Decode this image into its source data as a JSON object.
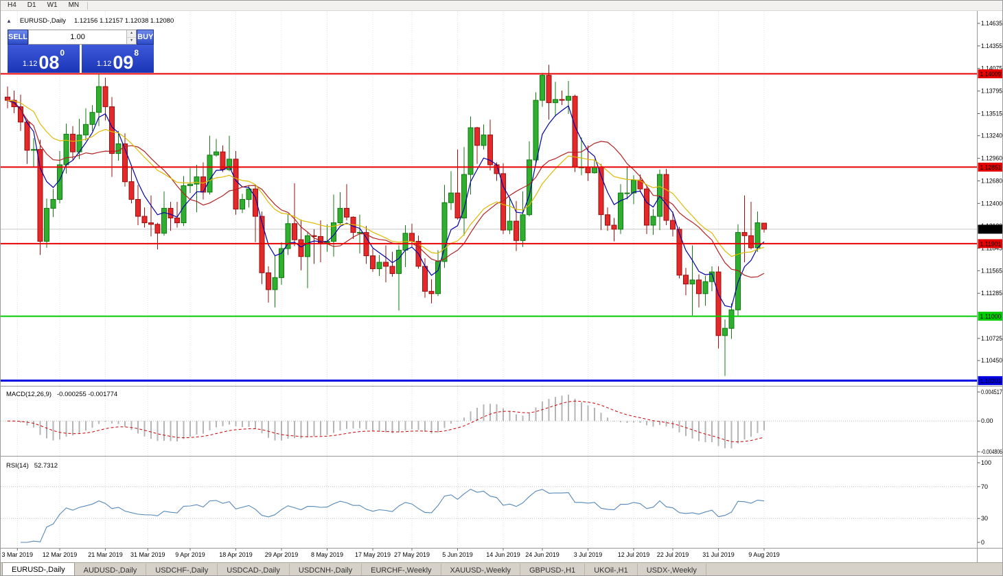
{
  "toolbar": {
    "timeframes": [
      "H4",
      "D1",
      "W1",
      "MN"
    ]
  },
  "chart": {
    "title": "EURUSD-,Daily",
    "ohlc": "1.12156 1.12157 1.12038 1.12080"
  },
  "one_click": {
    "sell_label": "SELL",
    "buy_label": "BUY",
    "volume": "1.00",
    "sell_price": {
      "base": "1.12",
      "big": "08",
      "sup": "0"
    },
    "buy_price": {
      "base": "1.12",
      "big": "09",
      "sup": "8"
    }
  },
  "macd": {
    "label": "MACD(12,26,9)",
    "values": "-0.000255 -0.001774",
    "axis_ticks": [
      {
        "v": 0.004517,
        "label": "0.004517"
      },
      {
        "v": 0,
        "label": "0.00"
      },
      {
        "v": -0.004806,
        "label": "-0.004806"
      }
    ]
  },
  "rsi": {
    "label": "RSI(14)",
    "value": "52.7312",
    "axis_ticks": [
      {
        "v": 100,
        "label": "100"
      },
      {
        "v": 70,
        "label": "70"
      },
      {
        "v": 30,
        "label": "30"
      },
      {
        "v": 0,
        "label": "0"
      }
    ],
    "levels": [
      70,
      30
    ]
  },
  "tabs": {
    "active_index": 0,
    "items": [
      "EURUSD-,Daily",
      "AUDUSD-,Daily",
      "USDCHF-,Daily",
      "USDCAD-,Daily",
      "USDCNH-,Daily",
      "EURCHF-,Weekly",
      "XAUUSD-,Weekly",
      "GBPUSD-,H1",
      "UKOil-,H1",
      "USDX-,Weekly"
    ]
  },
  "chart_data": {
    "type": "candlestick",
    "symbol": "EURUSD-",
    "timeframe": "Daily",
    "current": {
      "price": 1.1208,
      "label": "1.12080"
    },
    "y_axis": {
      "ticks": [
        "1.14635",
        "1.14355",
        "1.14075",
        "1.13795",
        "1.13515",
        "1.13240",
        "1.12960",
        "1.12680",
        "1.12400",
        "1.12120",
        "1.11845",
        "1.11565",
        "1.11285",
        "1.10725",
        "1.10450"
      ]
    },
    "x_ticks": [
      {
        "label": "3 Mar 2019",
        "i": 1.5
      },
      {
        "label": "12 Mar 2019",
        "i": 8
      },
      {
        "label": "21 Mar 2019",
        "i": 15
      },
      {
        "label": "31 Mar 2019",
        "i": 21.5
      },
      {
        "label": "9 Apr 2019",
        "i": 28
      },
      {
        "label": "18 Apr 2019",
        "i": 35
      },
      {
        "label": "29 Apr 2019",
        "i": 42
      },
      {
        "label": "8 May 2019",
        "i": 49
      },
      {
        "label": "17 May 2019",
        "i": 56
      },
      {
        "label": "27 May 2019",
        "i": 62
      },
      {
        "label": "5 Jun 2019",
        "i": 69
      },
      {
        "label": "14 Jun 2019",
        "i": 76
      },
      {
        "label": "24 Jun 2019",
        "i": 82
      },
      {
        "label": "3 Jul 2019",
        "i": 89
      },
      {
        "label": "12 Jul 2019",
        "i": 96
      },
      {
        "label": "22 Jul 2019",
        "i": 102
      },
      {
        "label": "31 Jul 2019",
        "i": 109
      },
      {
        "label": "9 Aug 2019",
        "i": 116
      }
    ],
    "levels": [
      {
        "price": 1.14009,
        "label": "1.14009",
        "color": "#e60000",
        "width": 2
      },
      {
        "price": 1.12851,
        "label": "1.12851",
        "color": "#e60000",
        "width": 2
      },
      {
        "price": 1.11901,
        "label": "1.11901",
        "color": "#e60000",
        "width": 2
      },
      {
        "price": 1.11,
        "label": "1.11000",
        "color": "#00cc00",
        "width": 2
      },
      {
        "price": 1.10201,
        "label": "1.10201",
        "color": "#0000e0",
        "width": 3
      }
    ],
    "moving_averages": [
      {
        "period": 5,
        "method": "ema",
        "color": "#0000a8"
      },
      {
        "period": 13,
        "method": "sma",
        "color": "#b22222"
      },
      {
        "period": 20,
        "method": "ema",
        "color": "#dfba00"
      }
    ],
    "colors": {
      "bull": "#2fae2f",
      "bull_border": "#117a11",
      "bear": "#e32929",
      "bear_border": "#9a0f0f",
      "macd_histogram": "#b5b5b5",
      "macd_signal": "#cc0000",
      "rsi_line": "#5588bb",
      "grid": "#e0e0e0"
    },
    "indicators": {
      "macd_params": [
        12,
        26,
        9
      ],
      "rsi_period": 14
    },
    "candles": [
      [
        1.1372,
        1.1385,
        1.1358,
        1.1368
      ],
      [
        1.1368,
        1.138,
        1.1352,
        1.136
      ],
      [
        1.136,
        1.1375,
        1.133,
        1.1341
      ],
      [
        1.1341,
        1.1345,
        1.1289,
        1.1306
      ],
      [
        1.1306,
        1.1321,
        1.1285,
        1.1307
      ],
      [
        1.1307,
        1.1319,
        1.1176,
        1.1193
      ],
      [
        1.1193,
        1.1246,
        1.1185,
        1.1234
      ],
      [
        1.1234,
        1.1258,
        1.1223,
        1.1245
      ],
      [
        1.1245,
        1.1305,
        1.124,
        1.1288
      ],
      [
        1.1288,
        1.1339,
        1.1277,
        1.1326
      ],
      [
        1.1326,
        1.1336,
        1.1294,
        1.1304
      ],
      [
        1.1304,
        1.1345,
        1.1295,
        1.1325
      ],
      [
        1.1325,
        1.1358,
        1.1318,
        1.1338
      ],
      [
        1.1338,
        1.1362,
        1.133,
        1.1353
      ],
      [
        1.1353,
        1.14,
        1.1336,
        1.1385
      ],
      [
        1.1385,
        1.1396,
        1.1343,
        1.136
      ],
      [
        1.136,
        1.1372,
        1.1273,
        1.1302
      ],
      [
        1.1302,
        1.133,
        1.1293,
        1.1314
      ],
      [
        1.1314,
        1.1327,
        1.1261,
        1.1267
      ],
      [
        1.1267,
        1.1286,
        1.124,
        1.1245
      ],
      [
        1.1245,
        1.1263,
        1.1213,
        1.1224
      ],
      [
        1.1224,
        1.1235,
        1.121,
        1.1216
      ],
      [
        1.1216,
        1.125,
        1.1199,
        1.1214
      ],
      [
        1.1214,
        1.1216,
        1.1183,
        1.1203
      ],
      [
        1.1203,
        1.1255,
        1.12,
        1.1234
      ],
      [
        1.1234,
        1.1242,
        1.1206,
        1.1222
      ],
      [
        1.1222,
        1.1242,
        1.121,
        1.1216
      ],
      [
        1.1216,
        1.1274,
        1.1212,
        1.1262
      ],
      [
        1.1262,
        1.1284,
        1.1253,
        1.1264
      ],
      [
        1.1264,
        1.1288,
        1.1229,
        1.1273
      ],
      [
        1.1273,
        1.1291,
        1.1245,
        1.1254
      ],
      [
        1.1254,
        1.1324,
        1.1251,
        1.13
      ],
      [
        1.13,
        1.132,
        1.1298,
        1.1304
      ],
      [
        1.1304,
        1.1312,
        1.1279,
        1.1282
      ],
      [
        1.1282,
        1.1324,
        1.128,
        1.1295
      ],
      [
        1.1295,
        1.1305,
        1.1226,
        1.1233
      ],
      [
        1.1233,
        1.1252,
        1.1228,
        1.1245
      ],
      [
        1.1245,
        1.1262,
        1.1235,
        1.1258
      ],
      [
        1.1258,
        1.1263,
        1.1192,
        1.1224
      ],
      [
        1.1224,
        1.123,
        1.114,
        1.1154
      ],
      [
        1.1154,
        1.1162,
        1.1117,
        1.1133
      ],
      [
        1.1133,
        1.1175,
        1.1111,
        1.1148
      ],
      [
        1.1148,
        1.1192,
        1.1139,
        1.1184
      ],
      [
        1.1184,
        1.1227,
        1.1176,
        1.1215
      ],
      [
        1.1215,
        1.1265,
        1.1187,
        1.1195
      ],
      [
        1.1195,
        1.122,
        1.1157,
        1.1174
      ],
      [
        1.1174,
        1.1205,
        1.1135,
        1.12
      ],
      [
        1.12,
        1.1208,
        1.1165,
        1.1199
      ],
      [
        1.1199,
        1.1219,
        1.1167,
        1.1191
      ],
      [
        1.1191,
        1.1214,
        1.118,
        1.1193
      ],
      [
        1.1193,
        1.1251,
        1.1174,
        1.1216
      ],
      [
        1.1216,
        1.1254,
        1.1214,
        1.1234
      ],
      [
        1.1234,
        1.1264,
        1.1219,
        1.1223
      ],
      [
        1.1223,
        1.1224,
        1.1196,
        1.1204
      ],
      [
        1.1204,
        1.1226,
        1.1178,
        1.1204
      ],
      [
        1.1204,
        1.1212,
        1.1165,
        1.1175
      ],
      [
        1.1175,
        1.1184,
        1.1155,
        1.1159
      ],
      [
        1.1159,
        1.1176,
        1.115,
        1.1167
      ],
      [
        1.1167,
        1.1188,
        1.1142,
        1.1162
      ],
      [
        1.1162,
        1.118,
        1.1149,
        1.1153
      ],
      [
        1.1153,
        1.1188,
        1.1107,
        1.1182
      ],
      [
        1.1182,
        1.1213,
        1.1161,
        1.1203
      ],
      [
        1.1203,
        1.1215,
        1.1186,
        1.1193
      ],
      [
        1.1193,
        1.12,
        1.1159,
        1.1162
      ],
      [
        1.1162,
        1.1172,
        1.1123,
        1.1131
      ],
      [
        1.1131,
        1.1146,
        1.1116,
        1.1128
      ],
      [
        1.1128,
        1.1182,
        1.1125,
        1.1168
      ],
      [
        1.1168,
        1.1263,
        1.116,
        1.1241
      ],
      [
        1.1241,
        1.128,
        1.1232,
        1.1253
      ],
      [
        1.1253,
        1.1307,
        1.122,
        1.1222
      ],
      [
        1.1222,
        1.131,
        1.12,
        1.1276
      ],
      [
        1.1276,
        1.1348,
        1.1251,
        1.1334
      ],
      [
        1.1334,
        1.1335,
        1.1289,
        1.1312
      ],
      [
        1.1312,
        1.1338,
        1.1307,
        1.1325
      ],
      [
        1.1325,
        1.1344,
        1.1281,
        1.1288
      ],
      [
        1.1288,
        1.1291,
        1.1268,
        1.1277
      ],
      [
        1.1277,
        1.129,
        1.1202,
        1.1207
      ],
      [
        1.1207,
        1.1248,
        1.1202,
        1.1218
      ],
      [
        1.1218,
        1.1243,
        1.1181,
        1.1194
      ],
      [
        1.1194,
        1.1255,
        1.1186,
        1.1226
      ],
      [
        1.1226,
        1.1317,
        1.1224,
        1.1294
      ],
      [
        1.1294,
        1.1378,
        1.1288,
        1.1368
      ],
      [
        1.1368,
        1.1402,
        1.136,
        1.1399
      ],
      [
        1.1399,
        1.1412,
        1.1344,
        1.1365
      ],
      [
        1.1365,
        1.1391,
        1.1348,
        1.1369
      ],
      [
        1.1369,
        1.138,
        1.1362,
        1.1368
      ],
      [
        1.1368,
        1.1392,
        1.1351,
        1.1373
      ],
      [
        1.1373,
        1.1375,
        1.1279,
        1.1285
      ],
      [
        1.1285,
        1.1322,
        1.1275,
        1.1285
      ],
      [
        1.1285,
        1.1312,
        1.1268,
        1.1278
      ],
      [
        1.1278,
        1.1295,
        1.1277,
        1.1285
      ],
      [
        1.1285,
        1.1289,
        1.1207,
        1.1226
      ],
      [
        1.1226,
        1.1235,
        1.1206,
        1.1213
      ],
      [
        1.1213,
        1.1222,
        1.1193,
        1.1208
      ],
      [
        1.1208,
        1.1264,
        1.1202,
        1.1253
      ],
      [
        1.1253,
        1.1286,
        1.1245,
        1.1253
      ],
      [
        1.1253,
        1.1275,
        1.1239,
        1.1269
      ],
      [
        1.1269,
        1.1276,
        1.1254,
        1.1258
      ],
      [
        1.1258,
        1.1262,
        1.1202,
        1.1213
      ],
      [
        1.1213,
        1.1233,
        1.1201,
        1.1224
      ],
      [
        1.1224,
        1.1282,
        1.1207,
        1.1276
      ],
      [
        1.1276,
        1.1283,
        1.1213,
        1.1219
      ],
      [
        1.1219,
        1.123,
        1.1199,
        1.1208
      ],
      [
        1.1208,
        1.1211,
        1.1147,
        1.1151
      ],
      [
        1.1151,
        1.116,
        1.1126,
        1.114
      ],
      [
        1.114,
        1.1188,
        1.1101,
        1.1145
      ],
      [
        1.1145,
        1.1152,
        1.1111,
        1.1128
      ],
      [
        1.1128,
        1.115,
        1.1113,
        1.1143
      ],
      [
        1.1143,
        1.1162,
        1.1131,
        1.1155
      ],
      [
        1.1155,
        1.1162,
        1.106,
        1.1076
      ],
      [
        1.1076,
        1.1096,
        1.1026,
        1.1085
      ],
      [
        1.1085,
        1.1116,
        1.1072,
        1.1108
      ],
      [
        1.1108,
        1.1214,
        1.1101,
        1.1204
      ],
      [
        1.1204,
        1.125,
        1.1167,
        1.12
      ],
      [
        1.12,
        1.1242,
        1.1183,
        1.1185
      ],
      [
        1.1185,
        1.123,
        1.118,
        1.1216
      ],
      [
        1.12156,
        1.12157,
        1.12038,
        1.1208
      ]
    ]
  }
}
